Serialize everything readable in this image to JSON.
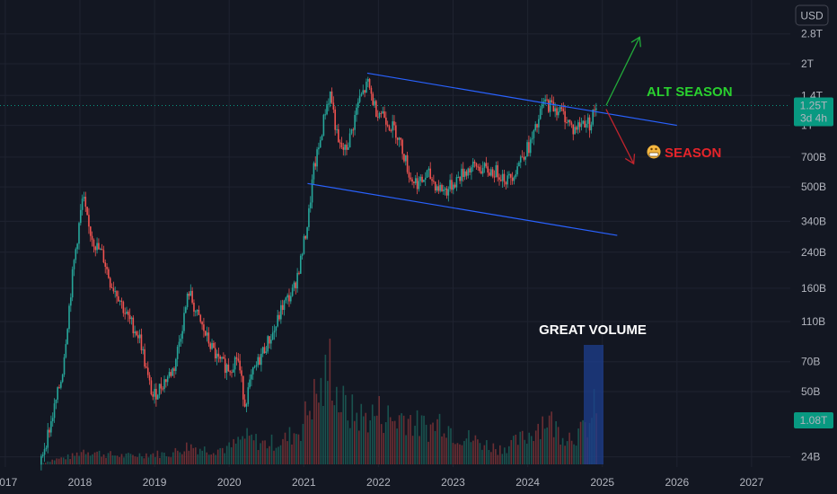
{
  "chart_data": {
    "type": "candlestick",
    "currency_button": "USD",
    "y_scale": "log",
    "y_ticks": [
      {
        "value": 2800000000000.0,
        "label": "2.8T"
      },
      {
        "value": 2000000000000.0,
        "label": "2T"
      },
      {
        "value": 1400000000000.0,
        "label": "1.4T"
      },
      {
        "value": 1000000000000.0,
        "label": "1T"
      },
      {
        "value": 700000000000.0,
        "label": "700B"
      },
      {
        "value": 500000000000.0,
        "label": "500B"
      },
      {
        "value": 340000000000.0,
        "label": "340B"
      },
      {
        "value": 240000000000.0,
        "label": "240B"
      },
      {
        "value": 160000000000.0,
        "label": "160B"
      },
      {
        "value": 110000000000.0,
        "label": "110B"
      },
      {
        "value": 70000000000.0,
        "label": "70B"
      },
      {
        "value": 50000000000.0,
        "label": "50B"
      },
      {
        "value": 24000000000.0,
        "label": "24B"
      }
    ],
    "x_ticks": [
      "2017",
      "2018",
      "2019",
      "2020",
      "2021",
      "2022",
      "2023",
      "2024",
      "2025",
      "2026",
      "2027"
    ],
    "x_range": [
      2017.0,
      2027.6
    ],
    "price_series": [
      {
        "t": 2017.45,
        "v": 22000000000.0
      },
      {
        "t": 2017.6,
        "v": 35000000000.0
      },
      {
        "t": 2017.75,
        "v": 60000000000.0
      },
      {
        "t": 2017.9,
        "v": 200000000000.0
      },
      {
        "t": 2018.03,
        "v": 450000000000.0
      },
      {
        "t": 2018.1,
        "v": 320000000000.0
      },
      {
        "t": 2018.2,
        "v": 260000000000.0
      },
      {
        "t": 2018.3,
        "v": 230000000000.0
      },
      {
        "t": 2018.4,
        "v": 170000000000.0
      },
      {
        "t": 2018.5,
        "v": 150000000000.0
      },
      {
        "t": 2018.6,
        "v": 120000000000.0
      },
      {
        "t": 2018.7,
        "v": 105000000000.0
      },
      {
        "t": 2018.8,
        "v": 90000000000.0
      },
      {
        "t": 2018.9,
        "v": 58000000000.0
      },
      {
        "t": 2018.97,
        "v": 47000000000.0
      },
      {
        "t": 2019.1,
        "v": 55000000000.0
      },
      {
        "t": 2019.25,
        "v": 65000000000.0
      },
      {
        "t": 2019.35,
        "v": 100000000000.0
      },
      {
        "t": 2019.45,
        "v": 155000000000.0
      },
      {
        "t": 2019.55,
        "v": 120000000000.0
      },
      {
        "t": 2019.7,
        "v": 90000000000.0
      },
      {
        "t": 2019.85,
        "v": 70000000000.0
      },
      {
        "t": 2020.0,
        "v": 65000000000.0
      },
      {
        "t": 2020.1,
        "v": 75000000000.0
      },
      {
        "t": 2020.2,
        "v": 44000000000.0
      },
      {
        "t": 2020.3,
        "v": 60000000000.0
      },
      {
        "t": 2020.45,
        "v": 80000000000.0
      },
      {
        "t": 2020.6,
        "v": 100000000000.0
      },
      {
        "t": 2020.7,
        "v": 130000000000.0
      },
      {
        "t": 2020.85,
        "v": 155000000000.0
      },
      {
        "t": 2020.95,
        "v": 220000000000.0
      },
      {
        "t": 2021.05,
        "v": 350000000000.0
      },
      {
        "t": 2021.12,
        "v": 600000000000.0
      },
      {
        "t": 2021.2,
        "v": 800000000000.0
      },
      {
        "t": 2021.28,
        "v": 1200000000000.0
      },
      {
        "t": 2021.35,
        "v": 1450000000000.0
      },
      {
        "t": 2021.45,
        "v": 800000000000.0
      },
      {
        "t": 2021.55,
        "v": 750000000000.0
      },
      {
        "t": 2021.62,
        "v": 900000000000.0
      },
      {
        "t": 2021.72,
        "v": 1300000000000.0
      },
      {
        "t": 2021.85,
        "v": 1600000000000.0
      },
      {
        "t": 2021.95,
        "v": 1200000000000.0
      },
      {
        "t": 2022.05,
        "v": 1150000000000.0
      },
      {
        "t": 2022.15,
        "v": 1000000000000.0
      },
      {
        "t": 2022.22,
        "v": 950000000000.0
      },
      {
        "t": 2022.32,
        "v": 750000000000.0
      },
      {
        "t": 2022.42,
        "v": 550000000000.0
      },
      {
        "t": 2022.55,
        "v": 520000000000.0
      },
      {
        "t": 2022.65,
        "v": 580000000000.0
      },
      {
        "t": 2022.78,
        "v": 500000000000.0
      },
      {
        "t": 2022.9,
        "v": 480000000000.0
      },
      {
        "t": 2023.05,
        "v": 550000000000.0
      },
      {
        "t": 2023.15,
        "v": 600000000000.0
      },
      {
        "t": 2023.3,
        "v": 630000000000.0
      },
      {
        "t": 2023.45,
        "v": 600000000000.0
      },
      {
        "t": 2023.6,
        "v": 590000000000.0
      },
      {
        "t": 2023.72,
        "v": 540000000000.0
      },
      {
        "t": 2023.82,
        "v": 600000000000.0
      },
      {
        "t": 2023.92,
        "v": 720000000000.0
      },
      {
        "t": 2024.02,
        "v": 800000000000.0
      },
      {
        "t": 2024.12,
        "v": 1000000000000.0
      },
      {
        "t": 2024.2,
        "v": 1300000000000.0
      },
      {
        "t": 2024.3,
        "v": 1250000000000.0
      },
      {
        "t": 2024.4,
        "v": 1200000000000.0
      },
      {
        "t": 2024.5,
        "v": 1100000000000.0
      },
      {
        "t": 2024.6,
        "v": 950000000000.0
      },
      {
        "t": 2024.68,
        "v": 1000000000000.0
      },
      {
        "t": 2024.75,
        "v": 1050000000000.0
      },
      {
        "t": 2024.83,
        "v": 1020000000000.0
      },
      {
        "t": 2024.9,
        "v": 1250000000000.0
      }
    ],
    "volume_series": [
      {
        "t": 2017.6,
        "v": 0.04
      },
      {
        "t": 2017.9,
        "v": 0.08
      },
      {
        "t": 2018.05,
        "v": 0.14
      },
      {
        "t": 2018.3,
        "v": 0.1
      },
      {
        "t": 2018.6,
        "v": 0.08
      },
      {
        "t": 2018.9,
        "v": 0.1
      },
      {
        "t": 2019.2,
        "v": 0.1
      },
      {
        "t": 2019.45,
        "v": 0.18
      },
      {
        "t": 2019.7,
        "v": 0.14
      },
      {
        "t": 2020.0,
        "v": 0.16
      },
      {
        "t": 2020.2,
        "v": 0.26
      },
      {
        "t": 2020.45,
        "v": 0.2
      },
      {
        "t": 2020.7,
        "v": 0.22
      },
      {
        "t": 2020.95,
        "v": 0.35
      },
      {
        "t": 2021.1,
        "v": 0.62
      },
      {
        "t": 2021.25,
        "v": 0.72
      },
      {
        "t": 2021.35,
        "v": 1.0
      },
      {
        "t": 2021.45,
        "v": 0.62
      },
      {
        "t": 2021.6,
        "v": 0.5
      },
      {
        "t": 2021.8,
        "v": 0.45
      },
      {
        "t": 2022.0,
        "v": 0.5
      },
      {
        "t": 2022.2,
        "v": 0.42
      },
      {
        "t": 2022.35,
        "v": 0.48
      },
      {
        "t": 2022.5,
        "v": 0.38
      },
      {
        "t": 2022.7,
        "v": 0.35
      },
      {
        "t": 2022.85,
        "v": 0.45
      },
      {
        "t": 2023.0,
        "v": 0.3
      },
      {
        "t": 2023.2,
        "v": 0.25
      },
      {
        "t": 2023.4,
        "v": 0.2
      },
      {
        "t": 2023.6,
        "v": 0.15
      },
      {
        "t": 2023.8,
        "v": 0.2
      },
      {
        "t": 2024.0,
        "v": 0.28
      },
      {
        "t": 2024.15,
        "v": 0.4
      },
      {
        "t": 2024.25,
        "v": 0.45
      },
      {
        "t": 2024.4,
        "v": 0.32
      },
      {
        "t": 2024.55,
        "v": 0.28
      },
      {
        "t": 2024.7,
        "v": 0.3
      },
      {
        "t": 2024.85,
        "v": 0.42
      },
      {
        "t": 2024.93,
        "v": 0.7
      }
    ],
    "current_price_label": "1.25T",
    "current_price_value": 1250000000000.0,
    "countdown_label": "3d 4h",
    "volume_label": "1.08T",
    "trend_lines": [
      {
        "name": "upper",
        "from": {
          "t": 2021.85,
          "v": 1800000000000.0
        },
        "to": {
          "t": 2026.0,
          "v": 1000000000000.0
        }
      },
      {
        "name": "lower",
        "from": {
          "t": 2021.05,
          "v": 520000000000.0
        },
        "to": {
          "t": 2025.2,
          "v": 290000000000.0
        }
      }
    ],
    "arrows": [
      {
        "name": "up",
        "from": {
          "t": 2025.05,
          "v": 1250000000000.0
        },
        "to": {
          "t": 2025.5,
          "v": 2700000000000.0
        },
        "color": "#22ab3a"
      },
      {
        "name": "down",
        "from": {
          "t": 2025.05,
          "v": 1200000000000.0
        },
        "to": {
          "t": 2025.42,
          "v": 650000000000.0
        },
        "color": "#c0242d"
      }
    ],
    "annotations": {
      "alt_season": {
        "text": "ALT SEASON",
        "color": "#2ad12f"
      },
      "season": {
        "text": "SEASON",
        "color": "#e5242a"
      },
      "great_volume": {
        "text": "GREAT VOLUME",
        "color": "#ffffff"
      }
    },
    "colors": {
      "up": "#26a69a",
      "down": "#ef5350",
      "trend": "#2962ff",
      "volume_highlight": "#1e3f8f",
      "price_label": "#089981"
    }
  }
}
